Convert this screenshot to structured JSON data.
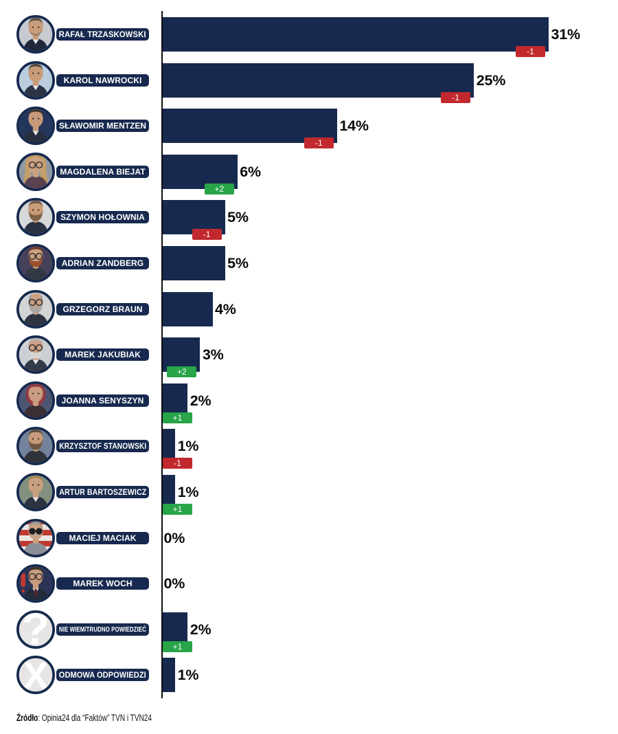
{
  "colors": {
    "navy": "#17294e",
    "red": "#c2292e",
    "green": "#28a449",
    "axis": "#0d0d0d",
    "value_text": "#0a0a0a",
    "badge_text": "#ffffff",
    "pill_text": "#ffffff",
    "neutral_circle": "#e7e6e4",
    "background": "#ffffff"
  },
  "chart_data": {
    "type": "bar",
    "orientation": "horizontal",
    "unit": "%",
    "title": "",
    "xlabel": "",
    "ylabel": "",
    "xlim": [
      0,
      35
    ],
    "grid": false,
    "legend": "none",
    "bar_color": "#17294e",
    "categories": [
      "RAFAŁ TRZASKOWSKI",
      "KAROL NAWROCKI",
      "SŁAWOMIR MENTZEN",
      "MAGDALENA BIEJAT",
      "SZYMON HOŁOWNIA",
      "ADRIAN ZANDBERG",
      "GRZEGORZ BRAUN",
      "MAREK JAKUBIAK",
      "JOANNA SENYSZYN",
      "KRZYSZTOF STANOWSKI",
      "ARTUR BARTOSZEWICZ",
      "MACIEJ MACIAK",
      "MAREK WOCH",
      "NIE WIEM/TRUDNO POWIEDZIEĆ",
      "ODMOWA ODPOWIEDZI"
    ],
    "values": [
      31,
      25,
      14,
      6,
      5,
      5,
      4,
      3,
      2,
      1,
      1,
      0,
      0,
      2,
      1
    ],
    "value_labels": [
      "31%",
      "25%",
      "14%",
      "6%",
      "5%",
      "5%",
      "4%",
      "3%",
      "2%",
      "1%",
      "1%",
      "0%",
      "0%",
      "2%",
      "1%"
    ],
    "changes": [
      -1,
      -1,
      -1,
      2,
      -1,
      null,
      null,
      2,
      1,
      -1,
      1,
      null,
      null,
      1,
      null
    ],
    "change_labels": [
      "-1",
      "-1",
      "-1",
      "+2",
      "-1",
      "",
      "",
      "+2",
      "+1",
      "-1",
      "+1",
      "",
      "",
      "+1",
      ""
    ]
  },
  "rows": [
    {
      "name": "RAFAŁ TRZASKOWSKI",
      "value": 31,
      "value_label": "31%",
      "change_label": "-1",
      "change_dir": "down",
      "avatar": {
        "kind": "person",
        "bg": "#c7cbd0",
        "hair": "#5f4e40",
        "skin": "#c99d7b",
        "suit": "#20293a",
        "hairstyle": "short",
        "beard": "stubble",
        "beard_color": "#8a7560",
        "shirt": true
      }
    },
    {
      "name": "KAROL NAWROCKI",
      "value": 25,
      "value_label": "25%",
      "change_label": "-1",
      "change_dir": "down",
      "avatar": {
        "kind": "person",
        "bg": "#b9cddd",
        "hair": "#57473a",
        "skin": "#c89a77",
        "suit": "#2b3345",
        "hairstyle": "short",
        "shirt": true
      }
    },
    {
      "name": "SŁAWOMIR MENTZEN",
      "value": 14,
      "value_label": "14%",
      "change_label": "-1",
      "change_dir": "down",
      "avatar": {
        "kind": "person",
        "bg": "#24365c",
        "hair": "#423a31",
        "skin": "#c79b7a",
        "suit": "#272e3d",
        "hairstyle": "short",
        "shirt": true
      }
    },
    {
      "name": "MAGDALENA BIEJAT",
      "value": 6,
      "value_label": "6%",
      "change_label": "+2",
      "change_dir": "up",
      "avatar": {
        "kind": "person",
        "bg": "#8f99a4",
        "hair": "#c29f68",
        "skin": "#cba181",
        "suit": "#5a4350",
        "hairstyle": "long",
        "glasses": "clear"
      }
    },
    {
      "name": "SZYMON HOŁOWNIA",
      "value": 5,
      "value_label": "5%",
      "change_label": "-1",
      "change_dir": "down",
      "avatar": {
        "kind": "person",
        "bg": "#d6d8d9",
        "hair": "#6e5740",
        "skin": "#c89b79",
        "suit": "#2a3140",
        "hairstyle": "short",
        "beard": "full",
        "beard_color": "#7d6248"
      }
    },
    {
      "name": "ADRIAN ZANDBERG",
      "value": 5,
      "value_label": "5%",
      "change_label": "",
      "change_dir": null,
      "avatar": {
        "kind": "person",
        "bg": "#46405a",
        "hair": "#713f2c",
        "skin": "#caa07e",
        "suit": "#333845",
        "hairstyle": "short",
        "beard": "full",
        "beard_color": "#9a512f",
        "glasses": "clear"
      }
    },
    {
      "name": "GRZEGORZ BRAUN",
      "value": 4,
      "value_label": "4%",
      "change_label": "",
      "change_dir": null,
      "avatar": {
        "kind": "person",
        "bg": "#d3d4d5",
        "hair": "#9b9b99",
        "skin": "#c9a183",
        "suit": "#2e3440",
        "hairstyle": "bald",
        "beard": "full",
        "beard_color": "#a9a8a5",
        "glasses": "clear"
      }
    },
    {
      "name": "MAREK JAKUBIAK",
      "value": 3,
      "value_label": "3%",
      "change_label": "+2",
      "change_dir": "up",
      "avatar": {
        "kind": "person",
        "bg": "#ccd0d4",
        "hair": "#b5b2ae",
        "skin": "#cda186",
        "suit": "#343b48",
        "hairstyle": "short",
        "beard": "full",
        "beard_color": "#d6d4d0",
        "glasses": "clear",
        "shirt": true
      }
    },
    {
      "name": "JOANNA SENYSZYN",
      "value": 2,
      "value_label": "2%",
      "change_label": "+1",
      "change_dir": "up",
      "avatar": {
        "kind": "person",
        "bg": "#4b5672",
        "hair": "#93383f",
        "skin": "#c99b80",
        "suit": "#3a2f33",
        "hairstyle": "bob"
      }
    },
    {
      "name": "KRZYSZTOF STANOWSKI",
      "value": 1,
      "value_label": "1%",
      "change_label": "-1",
      "change_dir": "down",
      "avatar": {
        "kind": "person",
        "bg": "#74829b",
        "hair": "#5d4c3c",
        "skin": "#c79b79",
        "suit": "#2f333a",
        "hairstyle": "short",
        "beard": "full",
        "beard_color": "#6d5946"
      }
    },
    {
      "name": "ARTUR BARTOSZEWICZ",
      "value": 1,
      "value_label": "1%",
      "change_label": "+1",
      "change_dir": "up",
      "avatar": {
        "kind": "person",
        "bg": "#82907f",
        "hair": "#a3884f",
        "skin": "#c9a07f",
        "suit": "#2c3340",
        "hairstyle": "short",
        "shirt": true
      }
    },
    {
      "name": "MACIEJ MACIAK",
      "value": 0,
      "value_label": "0%",
      "change_label": "",
      "change_dir": null,
      "avatar": {
        "kind": "person",
        "bg": "#c0392f",
        "bg_style": "stripes",
        "bg2": "#e9e6e2",
        "hair": "#9a9b9d",
        "skin": "#c9a07f",
        "suit": "#8a8f96",
        "hairstyle": "short",
        "mustache": true,
        "beard_color": "#a7a8aa",
        "glasses": "sun"
      }
    },
    {
      "name": "MAREK WOCH",
      "value": 0,
      "value_label": "0%",
      "change_label": "",
      "change_dir": null,
      "avatar": {
        "kind": "person",
        "bg": "#2c3357",
        "accent": "#c0392f",
        "hair": "#3f332a",
        "skin": "#c79b7d",
        "suit": "#222b3a",
        "hairstyle": "short",
        "glasses": "clear",
        "shirt": true,
        "tie": "#5a2430"
      }
    },
    {
      "name": "NIE WIEM/TRUDNO POWIEDZIEĆ",
      "value": 2,
      "value_label": "2%",
      "change_label": "+1",
      "change_dir": "up",
      "avatar": {
        "kind": "glyph",
        "glyph": "?",
        "bg": "#e7e6e4",
        "glyph_color": "#ffffff"
      }
    },
    {
      "name": "ODMOWA ODPOWIEDZI",
      "value": 1,
      "value_label": "1%",
      "change_label": "",
      "change_dir": null,
      "avatar": {
        "kind": "glyph",
        "glyph": "X",
        "bg": "#e7e6e4",
        "glyph_color": "#ffffff"
      }
    }
  ],
  "source": {
    "prefix": "Źródło",
    "rest": ": Opinia24 dla “Faktów” TVN i TVN24"
  }
}
